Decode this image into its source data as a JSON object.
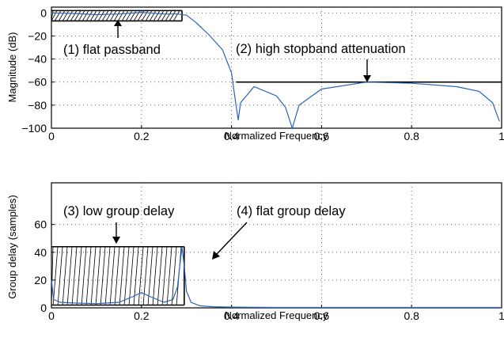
{
  "chart_data": [
    {
      "type": "line",
      "xlabel": "Normalized Frequency",
      "ylabel": "Magnitude (dB)",
      "xlim": [
        0,
        1
      ],
      "ylim": [
        -100,
        5
      ],
      "xticks": [
        0,
        0.2,
        0.4,
        0.6,
        0.8,
        1
      ],
      "xtick_labels": [
        "0",
        "0.2",
        "0.4",
        "0.6",
        "0.8",
        "1"
      ],
      "yticks": [
        0,
        -20,
        -40,
        -60,
        -80,
        -100
      ],
      "ytick_labels": [
        "0",
        "−20",
        "−40",
        "−60",
        "−80",
        "−100"
      ],
      "grid": true,
      "color": "#2a63b8",
      "x": [
        0,
        0.05,
        0.1,
        0.15,
        0.2,
        0.25,
        0.28,
        0.3,
        0.32,
        0.35,
        0.38,
        0.4,
        0.41,
        0.415,
        0.42,
        0.45,
        0.5,
        0.52,
        0.535,
        0.55,
        0.6,
        0.7,
        0.8,
        0.9,
        0.95,
        0.98,
        0.995
      ],
      "y": [
        0,
        -0.5,
        -1.5,
        -1,
        0.5,
        -1,
        -1,
        -2,
        -8,
        -19,
        -32,
        -52,
        -80,
        -93,
        -78,
        -64,
        -72,
        -82,
        -100,
        -80,
        -66,
        -60,
        -61,
        -64,
        -68,
        -78,
        -94
      ],
      "spec_lines": [
        {
          "label": "passband upper bound",
          "x": [
            0,
            0.29
          ],
          "y": 2
        },
        {
          "label": "passband lower bound",
          "x": [
            0,
            0.29
          ],
          "y": -7
        },
        {
          "label": "stopband bound",
          "x": [
            0.41,
            1
          ],
          "y": -60
        }
      ],
      "annotations": [
        {
          "text": "(1) flat passband",
          "x": 0.15
        },
        {
          "text": "(2) high stopband attenuation",
          "x": 0.7
        }
      ]
    },
    {
      "type": "line",
      "xlabel": "Normalized Frequency",
      "ylabel": "Group delay (samples)",
      "xlim": [
        0,
        1
      ],
      "ylim": [
        0,
        90
      ],
      "xticks": [
        0,
        0.2,
        0.4,
        0.6,
        0.8,
        1
      ],
      "xtick_labels": [
        "0",
        "0.2",
        "0.4",
        "0.6",
        "0.8",
        "1"
      ],
      "yticks": [
        0,
        20,
        40,
        60
      ],
      "ytick_labels": [
        "0",
        "20",
        "40",
        "60"
      ],
      "grid": true,
      "color": "#2a63b8",
      "x": [
        0,
        0.005,
        0.02,
        0.05,
        0.1,
        0.15,
        0.18,
        0.2,
        0.22,
        0.25,
        0.27,
        0.28,
        0.285,
        0.29,
        0.295,
        0.3,
        0.31,
        0.33,
        0.36,
        0.4,
        0.5,
        0.7,
        1
      ],
      "y": [
        20,
        6,
        4,
        3.5,
        3,
        4,
        8,
        11,
        8,
        4,
        6,
        15,
        30,
        44,
        30,
        12,
        4,
        1.5,
        0.8,
        0.5,
        0.3,
        0.3,
        0.3
      ],
      "spec_lines": [
        {
          "label": "group delay upper bound",
          "x": [
            0,
            0.295
          ],
          "y": 44
        },
        {
          "label": "group delay lower bound",
          "x": [
            0,
            0.295
          ],
          "y": 2
        }
      ],
      "annotations": [
        {
          "text": "(3) low group delay",
          "x": 0.15
        },
        {
          "text": "(4) flat group delay",
          "x": 0.26
        }
      ]
    }
  ]
}
